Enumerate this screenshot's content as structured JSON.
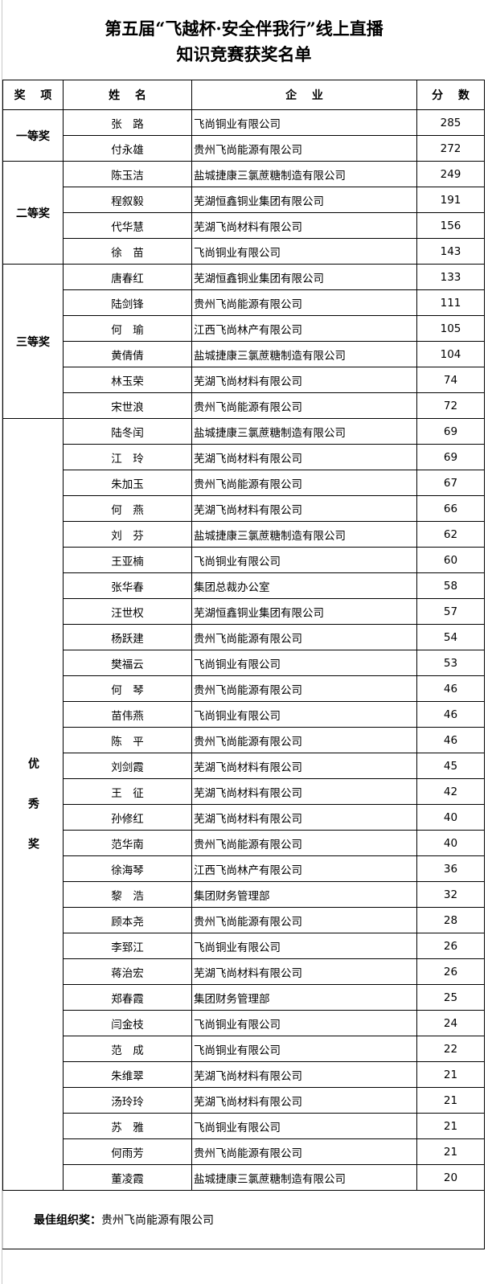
{
  "title": {
    "line1": "第五届“飞越杯·安全伴我行”线上直播",
    "line2": "知识竞赛获奖名单"
  },
  "headers": {
    "award": "奖 项",
    "name": "姓 名",
    "company": "企 业",
    "score": "分 数"
  },
  "groups": [
    {
      "award": "一等奖",
      "rows": [
        {
          "name": "张　路",
          "company": "飞尚铜业有限公司",
          "score": "285"
        },
        {
          "name": "付永雄",
          "company": "贵州飞尚能源有限公司",
          "score": "272"
        }
      ]
    },
    {
      "award": "二等奖",
      "rows": [
        {
          "name": "陈玉洁",
          "company": "盐城捷康三氯蔗糖制造有限公司",
          "score": "249"
        },
        {
          "name": "程叙毅",
          "company": "芜湖恒鑫铜业集团有限公司",
          "score": "191"
        },
        {
          "name": "代华慧",
          "company": "芜湖飞尚材料有限公司",
          "score": "156"
        },
        {
          "name": "徐　苗",
          "company": "飞尚铜业有限公司",
          "score": "143"
        }
      ]
    },
    {
      "award": "三等奖",
      "rows": [
        {
          "name": "唐春红",
          "company": "芜湖恒鑫铜业集团有限公司",
          "score": "133"
        },
        {
          "name": "陆剑锋",
          "company": "贵州飞尚能源有限公司",
          "score": "111"
        },
        {
          "name": "何　瑜",
          "company": "江西飞尚林产有限公司",
          "score": "105"
        },
        {
          "name": "黄倩倩",
          "company": "盐城捷康三氯蔗糖制造有限公司",
          "score": "104"
        },
        {
          "name": "林玉荣",
          "company": "芜湖飞尚材料有限公司",
          "score": "74"
        },
        {
          "name": "宋世浪",
          "company": "贵州飞尚能源有限公司",
          "score": "72"
        }
      ]
    },
    {
      "award": "优秀奖",
      "vertical": true,
      "rows": [
        {
          "name": "陆冬闰",
          "company": "盐城捷康三氯蔗糖制造有限公司",
          "score": "69"
        },
        {
          "name": "江　玲",
          "company": "芜湖飞尚材料有限公司",
          "score": "69"
        },
        {
          "name": "朱加玉",
          "company": "贵州飞尚能源有限公司",
          "score": "67"
        },
        {
          "name": "何　燕",
          "company": "芜湖飞尚材料有限公司",
          "score": "66"
        },
        {
          "name": "刘　芬",
          "company": "盐城捷康三氯蔗糖制造有限公司",
          "score": "62"
        },
        {
          "name": "王亚楠",
          "company": "飞尚铜业有限公司",
          "score": "60"
        },
        {
          "name": "张华春",
          "company": "集团总裁办公室",
          "score": "58"
        },
        {
          "name": "汪世权",
          "company": "芜湖恒鑫铜业集团有限公司",
          "score": "57"
        },
        {
          "name": "杨跃建",
          "company": "贵州飞尚能源有限公司",
          "score": "54"
        },
        {
          "name": "樊福云",
          "company": "飞尚铜业有限公司",
          "score": "53"
        },
        {
          "name": "何　琴",
          "company": "贵州飞尚能源有限公司",
          "score": "46"
        },
        {
          "name": "苗伟燕",
          "company": "飞尚铜业有限公司",
          "score": "46"
        },
        {
          "name": "陈　平",
          "company": "贵州飞尚能源有限公司",
          "score": "46"
        },
        {
          "name": "刘剑霞",
          "company": "芜湖飞尚材料有限公司",
          "score": "45"
        },
        {
          "name": "王　征",
          "company": "芜湖飞尚材料有限公司",
          "score": "42"
        },
        {
          "name": "孙修红",
          "company": "芜湖飞尚材料有限公司",
          "score": "40"
        },
        {
          "name": "范华南",
          "company": "贵州飞尚能源有限公司",
          "score": "40"
        },
        {
          "name": "徐海琴",
          "company": "江西飞尚林产有限公司",
          "score": "36"
        },
        {
          "name": "黎　浩",
          "company": "集团财务管理部",
          "score": "32"
        },
        {
          "name": "顾本尧",
          "company": "贵州飞尚能源有限公司",
          "score": "28"
        },
        {
          "name": "李郅江",
          "company": "飞尚铜业有限公司",
          "score": "26"
        },
        {
          "name": "蒋治宏",
          "company": "芜湖飞尚材料有限公司",
          "score": "26"
        },
        {
          "name": "郑春霞",
          "company": "集团财务管理部",
          "score": "25"
        },
        {
          "name": "闫金枝",
          "company": "飞尚铜业有限公司",
          "score": "24"
        },
        {
          "name": "范　成",
          "company": "飞尚铜业有限公司",
          "score": "22"
        },
        {
          "name": "朱维翠",
          "company": "芜湖飞尚材料有限公司",
          "score": "21"
        },
        {
          "name": "汤玲玲",
          "company": "芜湖飞尚材料有限公司",
          "score": "21"
        },
        {
          "name": "苏　雅",
          "company": "飞尚铜业有限公司",
          "score": "21"
        },
        {
          "name": "何雨芳",
          "company": "贵州飞尚能源有限公司",
          "score": "21"
        },
        {
          "name": "董凌霞",
          "company": "盐城捷康三氯蔗糖制造有限公司",
          "score": "20"
        }
      ]
    }
  ],
  "footer": {
    "label": "最佳组织奖：",
    "value": "贵州飞尚能源有限公司"
  }
}
